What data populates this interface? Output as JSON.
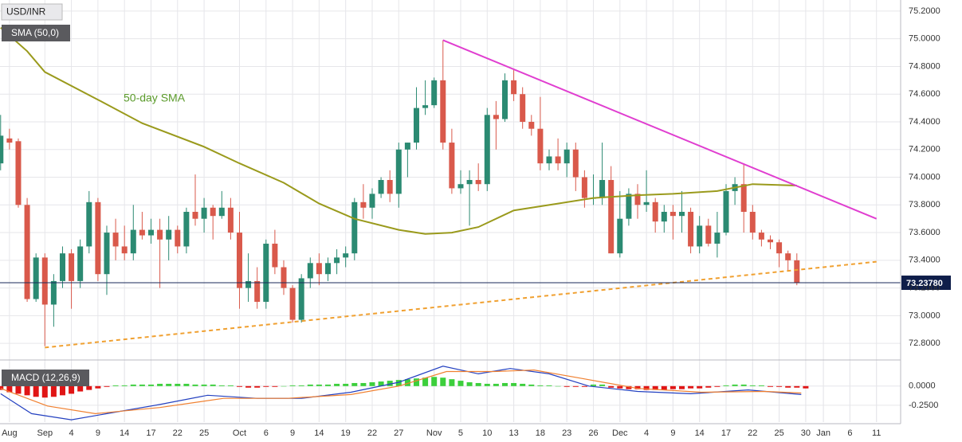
{
  "chart_data": [
    {
      "type": "candlestick",
      "title": "USD/INR",
      "x": [
        -2,
        -1,
        0,
        1,
        2,
        3,
        4,
        5,
        6,
        7,
        8,
        9,
        10,
        11,
        12,
        13,
        14,
        15,
        16,
        17,
        18,
        19,
        20,
        21,
        22,
        23,
        24,
        25,
        26,
        27,
        28,
        29,
        30,
        31,
        32,
        33,
        34,
        35,
        36,
        37,
        38,
        39,
        40,
        41,
        42,
        43,
        44,
        45,
        46,
        47,
        48,
        49,
        50,
        51,
        52,
        53,
        54,
        55,
        56,
        57,
        58,
        59,
        60,
        61,
        62,
        63,
        64,
        65,
        66,
        67,
        68,
        69,
        70,
        71,
        72,
        73,
        74,
        75,
        76,
        77,
        78,
        79,
        80,
        81,
        82,
        83,
        84,
        85,
        86,
        87,
        88,
        89
      ],
      "ohlc": [
        [
          74.1,
          74.45,
          74.05,
          74.3
        ],
        [
          74.28,
          74.35,
          74.2,
          74.25
        ],
        [
          74.26,
          74.28,
          73.78,
          73.8
        ],
        [
          73.8,
          73.85,
          73.1,
          73.12
        ],
        [
          73.12,
          73.45,
          73.1,
          73.42
        ],
        [
          73.42,
          73.45,
          72.78,
          73.08
        ],
        [
          73.08,
          73.3,
          72.92,
          73.25
        ],
        [
          73.25,
          73.5,
          73.2,
          73.45
        ],
        [
          73.45,
          73.48,
          73.05,
          73.25
        ],
        [
          73.25,
          73.55,
          73.2,
          73.5
        ],
        [
          73.5,
          73.9,
          73.45,
          73.82
        ],
        [
          73.82,
          73.85,
          73.25,
          73.3
        ],
        [
          73.3,
          73.65,
          73.15,
          73.6
        ],
        [
          73.6,
          73.7,
          73.4,
          73.5
        ],
        [
          73.5,
          73.65,
          73.4,
          73.45
        ],
        [
          73.45,
          73.8,
          73.4,
          73.62
        ],
        [
          73.62,
          73.75,
          73.55,
          73.58
        ],
        [
          73.58,
          73.7,
          73.52,
          73.62
        ],
        [
          73.62,
          73.7,
          73.2,
          73.55
        ],
        [
          73.55,
          73.72,
          73.4,
          73.62
        ],
        [
          73.62,
          73.65,
          73.45,
          73.5
        ],
        [
          73.5,
          73.78,
          73.45,
          73.75
        ],
        [
          73.75,
          74.02,
          73.65,
          73.7
        ],
        [
          73.7,
          73.85,
          73.6,
          73.78
        ],
        [
          73.78,
          73.8,
          73.55,
          73.72
        ],
        [
          73.72,
          73.9,
          73.7,
          73.78
        ],
        [
          73.78,
          73.85,
          73.55,
          73.6
        ],
        [
          73.6,
          73.75,
          73.05,
          73.2
        ],
        [
          73.2,
          73.45,
          73.1,
          73.25
        ],
        [
          73.25,
          73.35,
          73.05,
          73.1
        ],
        [
          73.1,
          73.55,
          73.05,
          73.52
        ],
        [
          73.52,
          73.62,
          73.3,
          73.35
        ],
        [
          73.35,
          73.4,
          73.15,
          73.2
        ],
        [
          73.2,
          73.22,
          72.95,
          72.97
        ],
        [
          72.97,
          73.3,
          72.95,
          73.27
        ],
        [
          73.27,
          73.42,
          73.2,
          73.38
        ],
        [
          73.38,
          73.45,
          73.22,
          73.3
        ],
        [
          73.3,
          73.42,
          73.25,
          73.38
        ],
        [
          73.38,
          73.48,
          73.3,
          73.42
        ],
        [
          73.42,
          73.5,
          73.35,
          73.45
        ],
        [
          73.45,
          73.85,
          73.4,
          73.82
        ],
        [
          73.82,
          73.95,
          73.7,
          73.78
        ],
        [
          73.78,
          73.92,
          73.7,
          73.88
        ],
        [
          73.88,
          74.0,
          73.85,
          73.98
        ],
        [
          73.98,
          74.05,
          73.82,
          73.88
        ],
        [
          73.88,
          74.25,
          73.78,
          74.2
        ],
        [
          74.2,
          74.25,
          74.0,
          74.25
        ],
        [
          74.25,
          74.65,
          74.2,
          74.5
        ],
        [
          74.5,
          74.7,
          74.45,
          74.52
        ],
        [
          74.52,
          74.72,
          74.5,
          74.7
        ],
        [
          74.7,
          74.99,
          74.2,
          74.25
        ],
        [
          74.25,
          74.35,
          73.88,
          73.92
        ],
        [
          73.92,
          74.05,
          73.88,
          73.95
        ],
        [
          73.95,
          74.05,
          73.65,
          73.98
        ],
        [
          73.98,
          74.1,
          73.9,
          73.95
        ],
        [
          73.95,
          74.5,
          73.9,
          74.45
        ],
        [
          74.45,
          74.55,
          74.2,
          74.42
        ],
        [
          74.42,
          74.75,
          74.4,
          74.7
        ],
        [
          74.7,
          74.78,
          74.55,
          74.6
        ],
        [
          74.6,
          74.65,
          74.35,
          74.4
        ],
        [
          74.4,
          74.45,
          74.3,
          74.35
        ],
        [
          74.35,
          74.58,
          74.05,
          74.1
        ],
        [
          74.1,
          74.2,
          74.05,
          74.15
        ],
        [
          74.15,
          74.28,
          74.05,
          74.1
        ],
        [
          74.1,
          74.25,
          74.0,
          74.2
        ],
        [
          74.2,
          74.25,
          73.9,
          74.0
        ],
        [
          74.0,
          74.05,
          73.78,
          73.85
        ],
        [
          73.85,
          74.02,
          73.8,
          73.85
        ],
        [
          73.85,
          74.25,
          73.8,
          73.98
        ],
        [
          73.98,
          74.08,
          73.45,
          73.45
        ],
        [
          73.45,
          73.9,
          73.42,
          73.7
        ],
        [
          73.7,
          73.92,
          73.65,
          73.88
        ],
        [
          73.88,
          73.95,
          73.7,
          73.8
        ],
        [
          73.8,
          74.05,
          73.75,
          73.82
        ],
        [
          73.82,
          73.85,
          73.6,
          73.68
        ],
        [
          73.68,
          73.8,
          73.6,
          73.75
        ],
        [
          73.75,
          73.8,
          73.55,
          73.72
        ],
        [
          73.72,
          73.9,
          73.6,
          73.75
        ],
        [
          73.75,
          73.78,
          73.45,
          73.5
        ],
        [
          73.5,
          73.72,
          73.45,
          73.65
        ],
        [
          73.65,
          73.7,
          73.5,
          73.52
        ],
        [
          73.52,
          73.75,
          73.42,
          73.6
        ],
        [
          73.6,
          73.95,
          73.58,
          73.9
        ],
        [
          73.9,
          74.0,
          73.8,
          73.95
        ],
        [
          73.95,
          74.1,
          73.6,
          73.75
        ],
        [
          73.75,
          73.8,
          73.55,
          73.6
        ],
        [
          73.6,
          73.62,
          73.5,
          73.55
        ],
        [
          73.55,
          73.58,
          73.48,
          73.53
        ],
        [
          73.53,
          73.55,
          73.35,
          73.45
        ],
        [
          73.45,
          73.47,
          73.32,
          73.4
        ],
        [
          73.4,
          73.45,
          73.22,
          73.2378
        ]
      ],
      "up_color": "#2b8a72",
      "down_color": "#d9594b",
      "series": [
        {
          "name": "SMA (50,0)",
          "color": "#9a9a1c",
          "x": [
            -2,
            1,
            3,
            9,
            14,
            21,
            25,
            30,
            34,
            38,
            43,
            46,
            49,
            52,
            56,
            61,
            65,
            70,
            74,
            79,
            83,
            88
          ],
          "values": [
            75.08,
            74.91,
            74.76,
            74.56,
            74.39,
            74.22,
            74.1,
            73.96,
            73.81,
            73.7,
            73.62,
            73.59,
            73.6,
            73.64,
            73.76,
            73.81,
            73.85,
            73.87,
            73.88,
            73.9,
            73.95,
            73.94
          ]
        }
      ],
      "annotation": "50-day SMA",
      "trendlines": [
        {
          "color": "#e03ed0",
          "dashed": false,
          "x": [
            48,
            97
          ],
          "values": [
            74.99,
            73.7
          ]
        },
        {
          "color": "#f0a030",
          "dashed": true,
          "x": [
            3,
            97
          ],
          "values": [
            72.77,
            73.39
          ]
        }
      ],
      "last_price": 73.2378,
      "last_price_label": "73.23780",
      "xlim": [
        -2.07,
        99.73
      ],
      "ylim": [
        72.68,
        75.28
      ],
      "xticks": [
        {
          "value": -1,
          "label": "Aug"
        },
        {
          "value": 3,
          "label": "Sep"
        },
        {
          "value": 6,
          "label": "4"
        },
        {
          "value": 9,
          "label": "9"
        },
        {
          "value": 12,
          "label": "14"
        },
        {
          "value": 15,
          "label": "17"
        },
        {
          "value": 18,
          "label": "22"
        },
        {
          "value": 21,
          "label": "25"
        },
        {
          "value": 25,
          "label": "Oct"
        },
        {
          "value": 28,
          "label": "6"
        },
        {
          "value": 31,
          "label": "9"
        },
        {
          "value": 34,
          "label": "14"
        },
        {
          "value": 37,
          "label": "19"
        },
        {
          "value": 40,
          "label": "22"
        },
        {
          "value": 43,
          "label": "27"
        },
        {
          "value": 47,
          "label": "Nov"
        },
        {
          "value": 50,
          "label": "5"
        },
        {
          "value": 53,
          "label": "10"
        },
        {
          "value": 56,
          "label": "13"
        },
        {
          "value": 59,
          "label": "18"
        },
        {
          "value": 62,
          "label": "23"
        },
        {
          "value": 65,
          "label": "26"
        },
        {
          "value": 68,
          "label": "Dec"
        },
        {
          "value": 71,
          "label": "4"
        },
        {
          "value": 74,
          "label": "9"
        },
        {
          "value": 77,
          "label": "14"
        },
        {
          "value": 80,
          "label": "17"
        },
        {
          "value": 83,
          "label": "22"
        },
        {
          "value": 86,
          "label": "25"
        },
        {
          "value": 89,
          "label": "30"
        },
        {
          "value": 91,
          "label": "Jan"
        },
        {
          "value": 94,
          "label": "6"
        },
        {
          "value": 97,
          "label": "11"
        }
      ],
      "yticks": [
        {
          "value": 75.2,
          "label": "75.2000"
        },
        {
          "value": 75.0,
          "label": "75.0000"
        },
        {
          "value": 74.8,
          "label": "74.8000"
        },
        {
          "value": 74.6,
          "label": "74.6000"
        },
        {
          "value": 74.4,
          "label": "74.4000"
        },
        {
          "value": 74.2,
          "label": "74.2000"
        },
        {
          "value": 74.0,
          "label": "74.0000"
        },
        {
          "value": 73.8,
          "label": "73.8000"
        },
        {
          "value": 73.6,
          "label": "73.6000"
        },
        {
          "value": 73.4,
          "label": "73.4000"
        },
        {
          "value": 73.2,
          "label": "73.2000"
        },
        {
          "value": 73.0,
          "label": "73.0000"
        },
        {
          "value": 72.8,
          "label": "72.8000"
        }
      ],
      "grid": true
    },
    {
      "type": "macd",
      "title": "MACD (12,26,9)",
      "x": [
        -2,
        -1,
        0,
        1,
        2,
        3,
        4,
        5,
        6,
        7,
        8,
        9,
        10,
        11,
        12,
        13,
        14,
        15,
        16,
        17,
        18,
        19,
        20,
        21,
        22,
        23,
        24,
        25,
        26,
        27,
        28,
        29,
        30,
        31,
        32,
        33,
        34,
        35,
        36,
        37,
        38,
        39,
        40,
        41,
        42,
        43,
        44,
        45,
        46,
        47,
        48,
        49,
        50,
        51,
        52,
        53,
        54,
        55,
        56,
        57,
        58,
        59,
        60,
        61,
        62,
        63,
        64,
        65,
        66,
        67,
        68,
        69,
        70,
        71,
        72,
        73,
        74,
        75,
        76,
        77,
        78,
        79,
        80,
        81,
        82,
        83,
        84,
        85,
        86,
        87,
        88,
        89
      ],
      "histogram": [
        -0.05,
        -0.08,
        -0.1,
        -0.12,
        -0.14,
        -0.15,
        -0.14,
        -0.12,
        -0.1,
        -0.07,
        -0.05,
        -0.03,
        -0.01,
        0.01,
        0.01,
        0.02,
        0.02,
        0.02,
        0.03,
        0.03,
        0.03,
        0.03,
        0.02,
        0.02,
        0.02,
        0.01,
        0.01,
        -0.01,
        -0.02,
        -0.02,
        -0.01,
        -0.01,
        0.0,
        0.01,
        0.01,
        0.02,
        0.02,
        0.02,
        0.03,
        0.03,
        0.04,
        0.04,
        0.05,
        0.06,
        0.07,
        0.08,
        0.09,
        0.1,
        0.11,
        0.12,
        0.11,
        0.09,
        0.07,
        0.05,
        0.04,
        0.03,
        0.03,
        0.04,
        0.04,
        0.03,
        0.02,
        0.01,
        0.01,
        0.0,
        -0.01,
        -0.01,
        -0.01,
        0.02,
        0.02,
        -0.02,
        -0.03,
        -0.04,
        -0.04,
        -0.05,
        -0.05,
        -0.05,
        -0.04,
        -0.04,
        -0.03,
        -0.03,
        -0.02,
        -0.01,
        0.01,
        0.02,
        0.02,
        0.01,
        0.01,
        -0.01,
        -0.01,
        -0.02,
        -0.02,
        -0.03
      ],
      "positive_color": "#3ccf3c",
      "negative_color": "#e01515",
      "series": [
        {
          "color": "#2340c0",
          "x": [
            -2,
            1.5,
            6,
            10,
            16,
            21.4,
            27,
            32,
            37.6,
            43,
            48,
            52,
            55.6,
            60,
            64.5,
            70,
            76,
            82.5,
            88.5
          ],
          "values": [
            -0.1,
            -0.36,
            -0.44,
            -0.36,
            -0.24,
            -0.12,
            -0.16,
            -0.16,
            -0.08,
            0.05,
            0.26,
            0.16,
            0.23,
            0.16,
            0.0,
            -0.07,
            -0.1,
            -0.05,
            -0.11
          ]
        },
        {
          "color": "#f08030",
          "x": [
            -2,
            3.3,
            8.7,
            16,
            23.2,
            30.4,
            37.6,
            43,
            48.4,
            53.8,
            58.3,
            63.7,
            70,
            77.2,
            84.4,
            88.5
          ],
          "values": [
            -0.03,
            -0.26,
            -0.36,
            -0.28,
            -0.16,
            -0.16,
            -0.11,
            0.0,
            0.19,
            0.19,
            0.21,
            0.1,
            -0.03,
            -0.08,
            -0.07,
            -0.09
          ]
        }
      ],
      "xlim": [
        -2.07,
        99.73
      ],
      "ylim": [
        -0.47,
        0.31
      ],
      "yticks": [
        {
          "value": 0,
          "label": "0.0000"
        },
        {
          "value": -0.25,
          "label": "-0.2500"
        }
      ],
      "grid": true
    }
  ]
}
